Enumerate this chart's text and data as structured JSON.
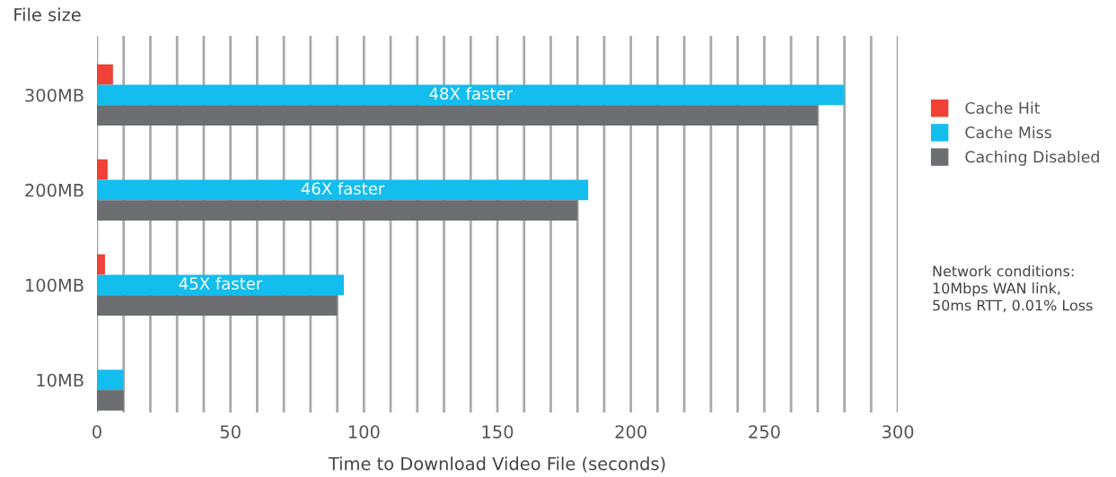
{
  "chart_data": {
    "type": "bar",
    "orientation": "horizontal",
    "ylabel": "File size",
    "xlabel": "Time to Download Video File (seconds)",
    "categories": [
      "300MB",
      "200MB",
      "100MB",
      "10MB"
    ],
    "series": [
      {
        "name": "Cache Hit",
        "color": "#ef4136",
        "values": [
          6,
          4,
          3,
          null
        ]
      },
      {
        "name": "Cache Miss",
        "color": "#13bdee",
        "values": [
          280,
          184,
          92.5,
          10
        ]
      },
      {
        "name": "Caching Disabled",
        "color": "#6d6e71",
        "values": [
          270,
          180,
          90,
          10
        ]
      }
    ],
    "xlim": [
      0,
      300
    ],
    "xticks": [
      0,
      {
        "value": 10,
        "label": null
      },
      {
        "value": 20,
        "label": null
      },
      {
        "value": 30,
        "label": null
      },
      {
        "value": 40,
        "label": null
      },
      50,
      {
        "value": 60,
        "label": null
      },
      {
        "value": 70,
        "label": null
      },
      {
        "value": 80,
        "label": null
      },
      {
        "value": 90,
        "label": null
      },
      100,
      {
        "value": 110,
        "label": null
      },
      {
        "value": 120,
        "label": null
      },
      {
        "value": 130,
        "label": null
      },
      {
        "value": 140,
        "label": null
      },
      150,
      {
        "value": 160,
        "label": null
      },
      {
        "value": 170,
        "label": null
      },
      {
        "value": 180,
        "label": null
      },
      {
        "value": 190,
        "label": null
      },
      200,
      {
        "value": 210,
        "label": null
      },
      {
        "value": 220,
        "label": null
      },
      {
        "value": 230,
        "label": null
      },
      {
        "value": 240,
        "label": null
      },
      250,
      {
        "value": 260,
        "label": null
      },
      {
        "value": 270,
        "label": null
      },
      {
        "value": 280,
        "label": null
      },
      {
        "value": 290,
        "label": null
      },
      300
    ],
    "grid": "x",
    "legend": "right",
    "annotations": [
      "48X faster",
      "46X faster",
      "45X faster",
      "Network conditions:\n10Mbps WAN link,\n50ms RTT, 0.01% Loss"
    ]
  }
}
